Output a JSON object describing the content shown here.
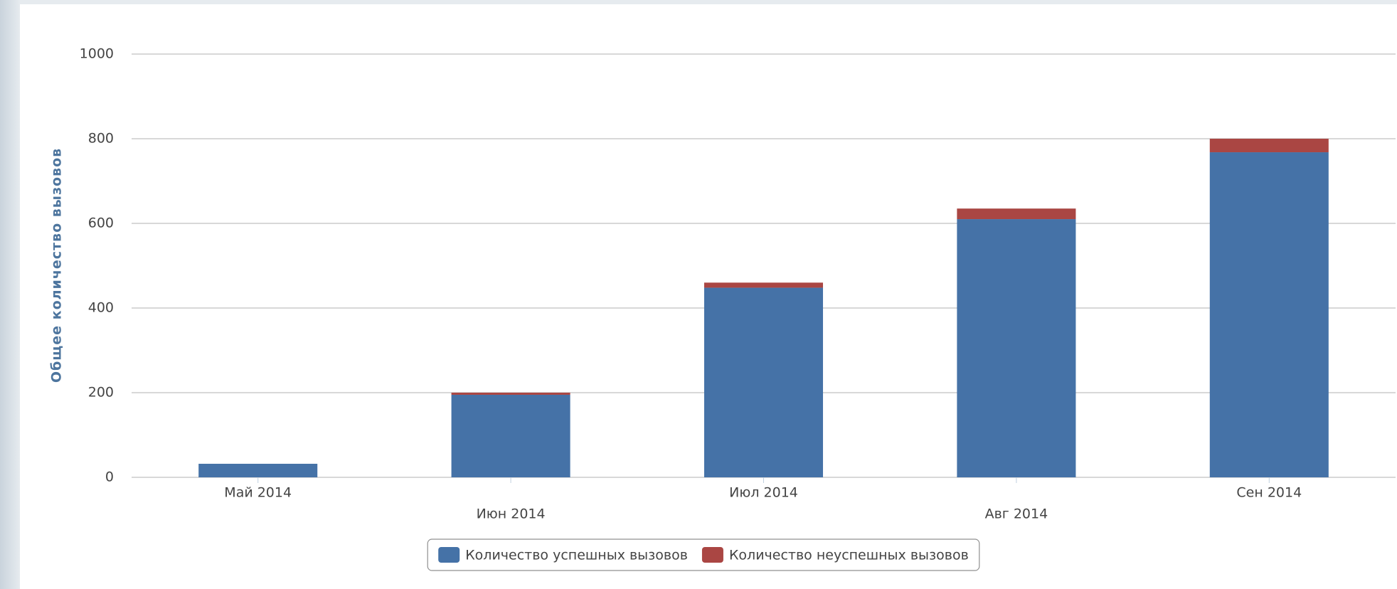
{
  "chart_data": {
    "type": "stacked_bar",
    "y_axis_label": "Общее количество вызовов",
    "categories": [
      "Май 2014",
      "Июн 2014",
      "Июл 2014",
      "Авг 2014",
      "Сен 2014"
    ],
    "series": [
      {
        "name": "Количество успешных вызовов",
        "color": "#4572a7",
        "values": [
          32,
          195,
          448,
          610,
          768
        ]
      },
      {
        "name": "Количество неуспешных вызовов",
        "color": "#aa4643",
        "values": [
          0,
          5,
          12,
          25,
          32
        ]
      }
    ],
    "ylim": [
      0,
      1000
    ],
    "yticks": [
      0,
      200,
      400,
      600,
      800,
      1000
    ],
    "grid": true
  }
}
